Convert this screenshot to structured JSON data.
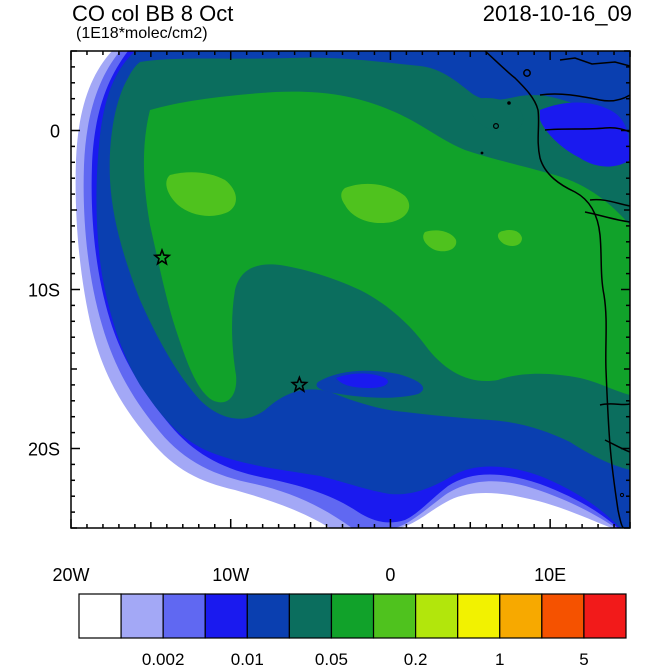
{
  "header": {
    "title": "CO col BB 8 Oct",
    "units": "(1E18*molec/cm2)",
    "timestamp": "2018-10-16_09"
  },
  "map": {
    "lon_range": [
      -20,
      15
    ],
    "lat_range": [
      -25,
      5
    ],
    "lon_ticks": [
      {
        "value": -20,
        "label": "20W"
      },
      {
        "value": -10,
        "label": "10W"
      },
      {
        "value": 0,
        "label": "0"
      },
      {
        "value": 10,
        "label": "10E"
      }
    ],
    "lat_ticks": [
      {
        "value": 0,
        "label": "0"
      },
      {
        "value": -10,
        "label": "10S"
      },
      {
        "value": -20,
        "label": "20S"
      }
    ],
    "markers": [
      {
        "name": "star-marker-1",
        "lon": -14.3,
        "lat": -8.0
      },
      {
        "name": "star-marker-2",
        "lon": -5.7,
        "lat": -16.0
      }
    ]
  },
  "colorbar": {
    "colors": [
      "#ffffff",
      "#a3a8f6",
      "#6068f2",
      "#1a1aef",
      "#0a3fb0",
      "#0b6e5e",
      "#11a22a",
      "#4fc21e",
      "#b2e60c",
      "#f2f200",
      "#f7a900",
      "#f55200",
      "#f21a1a"
    ],
    "labels": [
      {
        "boundary": 2,
        "text": "0.002"
      },
      {
        "boundary": 4,
        "text": "0.01"
      },
      {
        "boundary": 6,
        "text": "0.05"
      },
      {
        "boundary": 8,
        "text": "0.2"
      },
      {
        "boundary": 10,
        "text": "1"
      },
      {
        "boundary": 12,
        "text": "5"
      }
    ]
  }
}
